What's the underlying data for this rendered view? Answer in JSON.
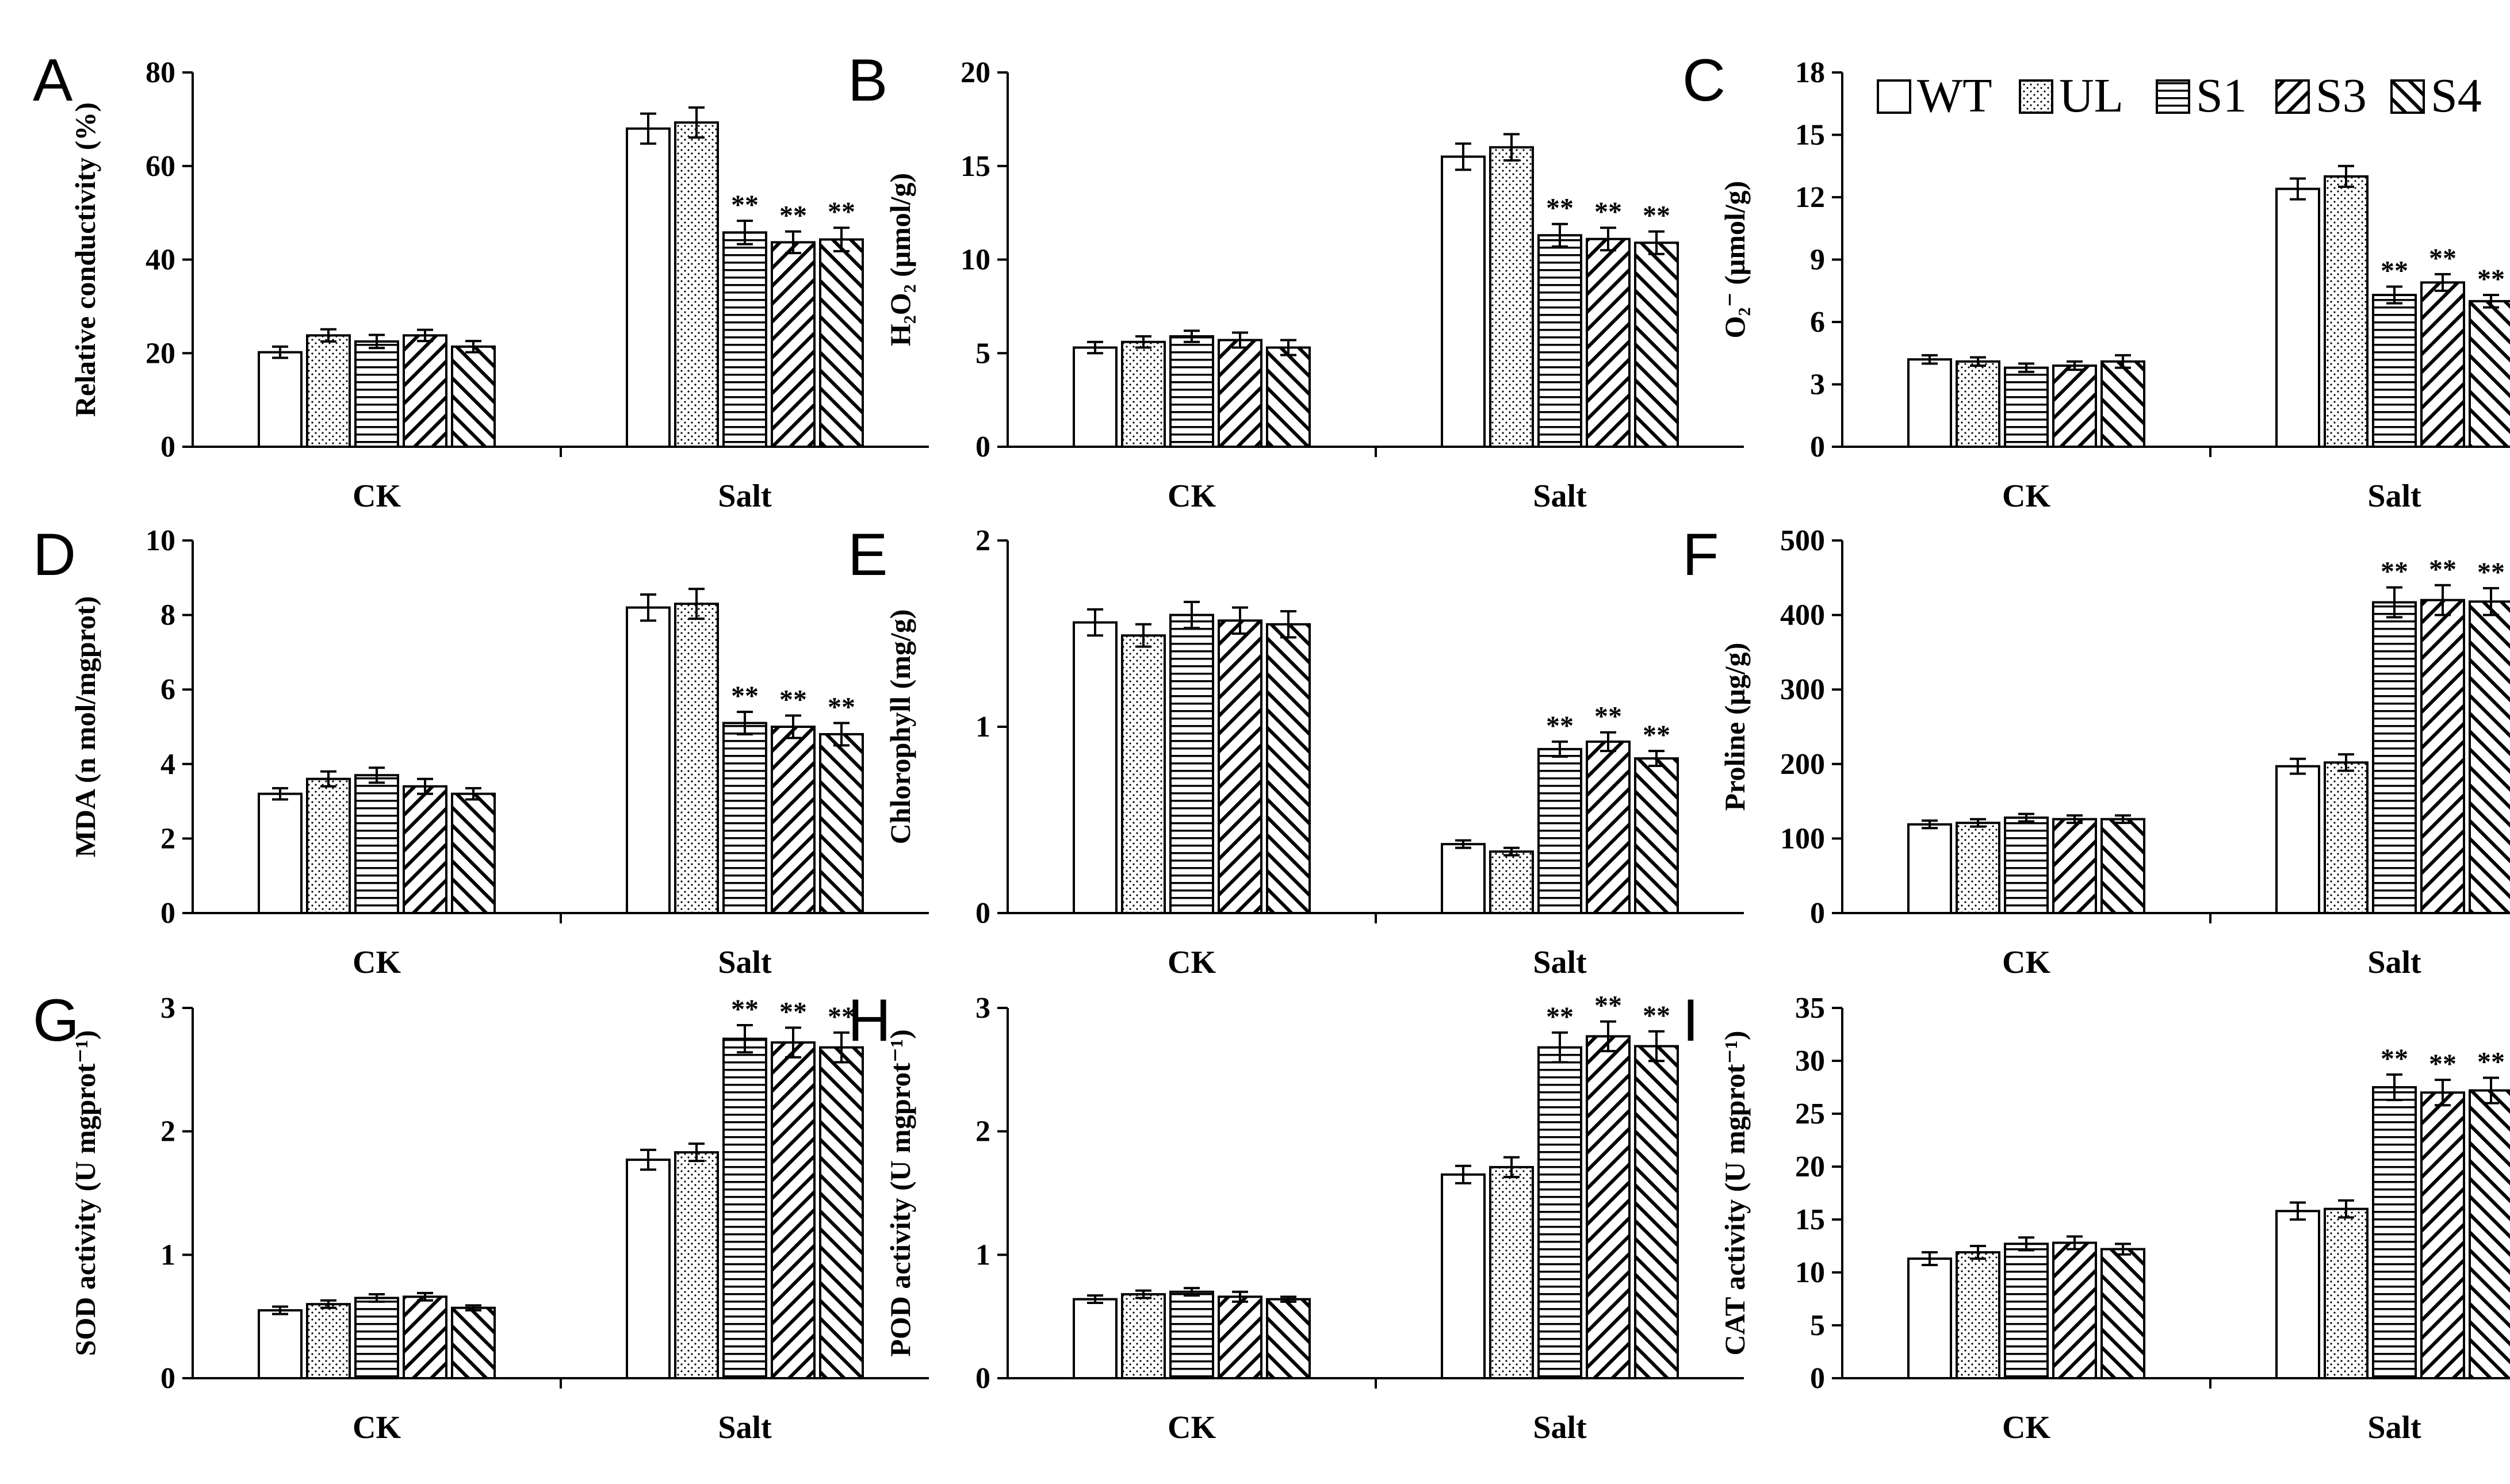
{
  "legend": [
    {
      "label": "WT",
      "pattern": "wt"
    },
    {
      "label": "UL",
      "pattern": "ul"
    },
    {
      "label": "S1",
      "pattern": "s1"
    },
    {
      "label": "S3",
      "pattern": "s3"
    },
    {
      "label": "S4",
      "pattern": "s4"
    }
  ],
  "chart_data": [
    {
      "type": "bar",
      "panel": "A",
      "ylabel": "Relative conductivity (%)",
      "ylim": [
        0,
        80
      ],
      "yticks": [
        0,
        20,
        40,
        60,
        80
      ],
      "categories": [
        "CK",
        "Salt"
      ],
      "series": [
        {
          "name": "WT",
          "values": [
            20.2,
            68
          ],
          "errors": [
            1.2,
            3.2
          ],
          "sig": [
            "",
            ""
          ]
        },
        {
          "name": "UL",
          "values": [
            23.8,
            69.3
          ],
          "errors": [
            1.3,
            3.2
          ],
          "sig": [
            "",
            ""
          ]
        },
        {
          "name": "S1",
          "values": [
            22.5,
            45.8
          ],
          "errors": [
            1.4,
            2.5
          ],
          "sig": [
            "",
            "**"
          ]
        },
        {
          "name": "S3",
          "values": [
            23.8,
            43.7
          ],
          "errors": [
            1.2,
            2.3
          ],
          "sig": [
            "",
            "**"
          ]
        },
        {
          "name": "S4",
          "values": [
            21.4,
            44.3
          ],
          "errors": [
            1.2,
            2.5
          ],
          "sig": [
            "",
            "**"
          ]
        }
      ]
    },
    {
      "type": "bar",
      "panel": "B",
      "ylabel": "H₂O₂ (μmol/g)",
      "ylim": [
        0,
        20
      ],
      "yticks": [
        0,
        5,
        10,
        15,
        20
      ],
      "categories": [
        "CK",
        "Salt"
      ],
      "series": [
        {
          "name": "WT",
          "values": [
            5.3,
            15.5
          ],
          "errors": [
            0.3,
            0.7
          ],
          "sig": [
            "",
            ""
          ]
        },
        {
          "name": "UL",
          "values": [
            5.6,
            16.0
          ],
          "errors": [
            0.3,
            0.7
          ],
          "sig": [
            "",
            ""
          ]
        },
        {
          "name": "S1",
          "values": [
            5.9,
            11.3
          ],
          "errors": [
            0.3,
            0.6
          ],
          "sig": [
            "",
            "**"
          ]
        },
        {
          "name": "S3",
          "values": [
            5.7,
            11.1
          ],
          "errors": [
            0.4,
            0.6
          ],
          "sig": [
            "",
            "**"
          ]
        },
        {
          "name": "S4",
          "values": [
            5.3,
            10.9
          ],
          "errors": [
            0.4,
            0.6
          ],
          "sig": [
            "",
            "**"
          ]
        }
      ]
    },
    {
      "type": "bar",
      "panel": "C",
      "ylabel": "O₂⁻ (μmol/g)",
      "ylim": [
        0,
        18
      ],
      "yticks": [
        0,
        3,
        6,
        9,
        12,
        15,
        18
      ],
      "categories": [
        "CK",
        "Salt"
      ],
      "series": [
        {
          "name": "WT",
          "values": [
            4.2,
            12.4
          ],
          "errors": [
            0.2,
            0.5
          ],
          "sig": [
            "",
            ""
          ]
        },
        {
          "name": "UL",
          "values": [
            4.1,
            13.0
          ],
          "errors": [
            0.2,
            0.5
          ],
          "sig": [
            "",
            ""
          ]
        },
        {
          "name": "S1",
          "values": [
            3.8,
            7.3
          ],
          "errors": [
            0.2,
            0.4
          ],
          "sig": [
            "",
            "**"
          ]
        },
        {
          "name": "S3",
          "values": [
            3.9,
            7.9
          ],
          "errors": [
            0.2,
            0.4
          ],
          "sig": [
            "",
            "**"
          ]
        },
        {
          "name": "S4",
          "values": [
            4.1,
            7.0
          ],
          "errors": [
            0.3,
            0.3
          ],
          "sig": [
            "",
            "**"
          ]
        }
      ]
    },
    {
      "type": "bar",
      "panel": "D",
      "ylabel": "MDA (n mol/mgprot)",
      "ylim": [
        0,
        10
      ],
      "yticks": [
        0,
        2,
        4,
        6,
        8,
        10
      ],
      "categories": [
        "CK",
        "Salt"
      ],
      "series": [
        {
          "name": "WT",
          "values": [
            3.2,
            8.2
          ],
          "errors": [
            0.15,
            0.35
          ],
          "sig": [
            "",
            ""
          ]
        },
        {
          "name": "UL",
          "values": [
            3.6,
            8.3
          ],
          "errors": [
            0.2,
            0.4
          ],
          "sig": [
            "",
            ""
          ]
        },
        {
          "name": "S1",
          "values": [
            3.7,
            5.1
          ],
          "errors": [
            0.2,
            0.3
          ],
          "sig": [
            "",
            "**"
          ]
        },
        {
          "name": "S3",
          "values": [
            3.4,
            5.0
          ],
          "errors": [
            0.2,
            0.3
          ],
          "sig": [
            "",
            "**"
          ]
        },
        {
          "name": "S4",
          "values": [
            3.2,
            4.8
          ],
          "errors": [
            0.15,
            0.3
          ],
          "sig": [
            "",
            "**"
          ]
        }
      ]
    },
    {
      "type": "bar",
      "panel": "E",
      "ylabel": "Chlorophyll (mg/g)",
      "ylim": [
        0,
        2
      ],
      "yticks": [
        0,
        1,
        2
      ],
      "categories": [
        "CK",
        "Salt"
      ],
      "series": [
        {
          "name": "WT",
          "values": [
            1.56,
            0.37
          ],
          "errors": [
            0.07,
            0.02
          ],
          "sig": [
            "",
            ""
          ]
        },
        {
          "name": "UL",
          "values": [
            1.49,
            0.33
          ],
          "errors": [
            0.06,
            0.02
          ],
          "sig": [
            "",
            ""
          ]
        },
        {
          "name": "S1",
          "values": [
            1.6,
            0.88
          ],
          "errors": [
            0.07,
            0.04
          ],
          "sig": [
            "",
            "**"
          ]
        },
        {
          "name": "S3",
          "values": [
            1.57,
            0.92
          ],
          "errors": [
            0.07,
            0.05
          ],
          "sig": [
            "",
            "**"
          ]
        },
        {
          "name": "S4",
          "values": [
            1.55,
            0.83
          ],
          "errors": [
            0.07,
            0.04
          ],
          "sig": [
            "",
            "**"
          ]
        }
      ]
    },
    {
      "type": "bar",
      "panel": "F",
      "ylabel": "Proline (μg/g)",
      "ylim": [
        0,
        500
      ],
      "yticks": [
        0,
        100,
        200,
        300,
        400,
        500
      ],
      "categories": [
        "CK",
        "Salt"
      ],
      "series": [
        {
          "name": "WT",
          "values": [
            119,
            197
          ],
          "errors": [
            5,
            10
          ],
          "sig": [
            "",
            ""
          ]
        },
        {
          "name": "UL",
          "values": [
            121,
            202
          ],
          "errors": [
            5,
            11
          ],
          "sig": [
            "",
            ""
          ]
        },
        {
          "name": "S1",
          "values": [
            128,
            417
          ],
          "errors": [
            5,
            20
          ],
          "sig": [
            "",
            "**"
          ]
        },
        {
          "name": "S3",
          "values": [
            126,
            420
          ],
          "errors": [
            5,
            20
          ],
          "sig": [
            "",
            "**"
          ]
        },
        {
          "name": "S4",
          "values": [
            126,
            418
          ],
          "errors": [
            5,
            18
          ],
          "sig": [
            "",
            "**"
          ]
        }
      ]
    },
    {
      "type": "bar",
      "panel": "G",
      "ylabel": "SOD activity (U mgprot⁻¹)",
      "ylim": [
        0,
        3
      ],
      "yticks": [
        0,
        1,
        2,
        3
      ],
      "categories": [
        "CK",
        "Salt"
      ],
      "series": [
        {
          "name": "WT",
          "values": [
            0.55,
            1.77
          ],
          "errors": [
            0.03,
            0.08
          ],
          "sig": [
            "",
            ""
          ]
        },
        {
          "name": "UL",
          "values": [
            0.6,
            1.83
          ],
          "errors": [
            0.03,
            0.07
          ],
          "sig": [
            "",
            ""
          ]
        },
        {
          "name": "S1",
          "values": [
            0.65,
            2.75
          ],
          "errors": [
            0.03,
            0.11
          ],
          "sig": [
            "",
            "**"
          ]
        },
        {
          "name": "S3",
          "values": [
            0.66,
            2.72
          ],
          "errors": [
            0.03,
            0.12
          ],
          "sig": [
            "",
            "**"
          ]
        },
        {
          "name": "S4",
          "values": [
            0.57,
            2.68
          ],
          "errors": [
            0.02,
            0.12
          ],
          "sig": [
            "",
            "**"
          ]
        }
      ]
    },
    {
      "type": "bar",
      "panel": "H",
      "ylabel": "POD activity (U mgprot⁻¹)",
      "ylim": [
        0,
        3
      ],
      "yticks": [
        0,
        1,
        2,
        3
      ],
      "categories": [
        "CK",
        "Salt"
      ],
      "series": [
        {
          "name": "WT",
          "values": [
            0.64,
            1.65
          ],
          "errors": [
            0.03,
            0.07
          ],
          "sig": [
            "",
            ""
          ]
        },
        {
          "name": "UL",
          "values": [
            0.68,
            1.71
          ],
          "errors": [
            0.03,
            0.08
          ],
          "sig": [
            "",
            ""
          ]
        },
        {
          "name": "S1",
          "values": [
            0.7,
            2.68
          ],
          "errors": [
            0.03,
            0.12
          ],
          "sig": [
            "",
            "**"
          ]
        },
        {
          "name": "S3",
          "values": [
            0.66,
            2.77
          ],
          "errors": [
            0.04,
            0.12
          ],
          "sig": [
            "",
            "**"
          ]
        },
        {
          "name": "S4",
          "values": [
            0.64,
            2.69
          ],
          "errors": [
            0.02,
            0.12
          ],
          "sig": [
            "",
            "**"
          ]
        }
      ]
    },
    {
      "type": "bar",
      "panel": "I",
      "ylabel": "CAT activity (U mgprot⁻¹)",
      "ylim": [
        0,
        35
      ],
      "yticks": [
        0,
        5,
        10,
        15,
        20,
        25,
        30,
        35
      ],
      "categories": [
        "CK",
        "Salt"
      ],
      "series": [
        {
          "name": "WT",
          "values": [
            11.3,
            15.8
          ],
          "errors": [
            0.6,
            0.8
          ],
          "sig": [
            "",
            ""
          ]
        },
        {
          "name": "UL",
          "values": [
            11.9,
            16.0
          ],
          "errors": [
            0.6,
            0.8
          ],
          "sig": [
            "",
            ""
          ]
        },
        {
          "name": "S1",
          "values": [
            12.7,
            27.5
          ],
          "errors": [
            0.6,
            1.2
          ],
          "sig": [
            "",
            "**"
          ]
        },
        {
          "name": "S3",
          "values": [
            12.8,
            27.0
          ],
          "errors": [
            0.6,
            1.2
          ],
          "sig": [
            "",
            "**"
          ]
        },
        {
          "name": "S4",
          "values": [
            12.2,
            27.2
          ],
          "errors": [
            0.5,
            1.2
          ],
          "sig": [
            "",
            "**"
          ]
        }
      ]
    }
  ]
}
